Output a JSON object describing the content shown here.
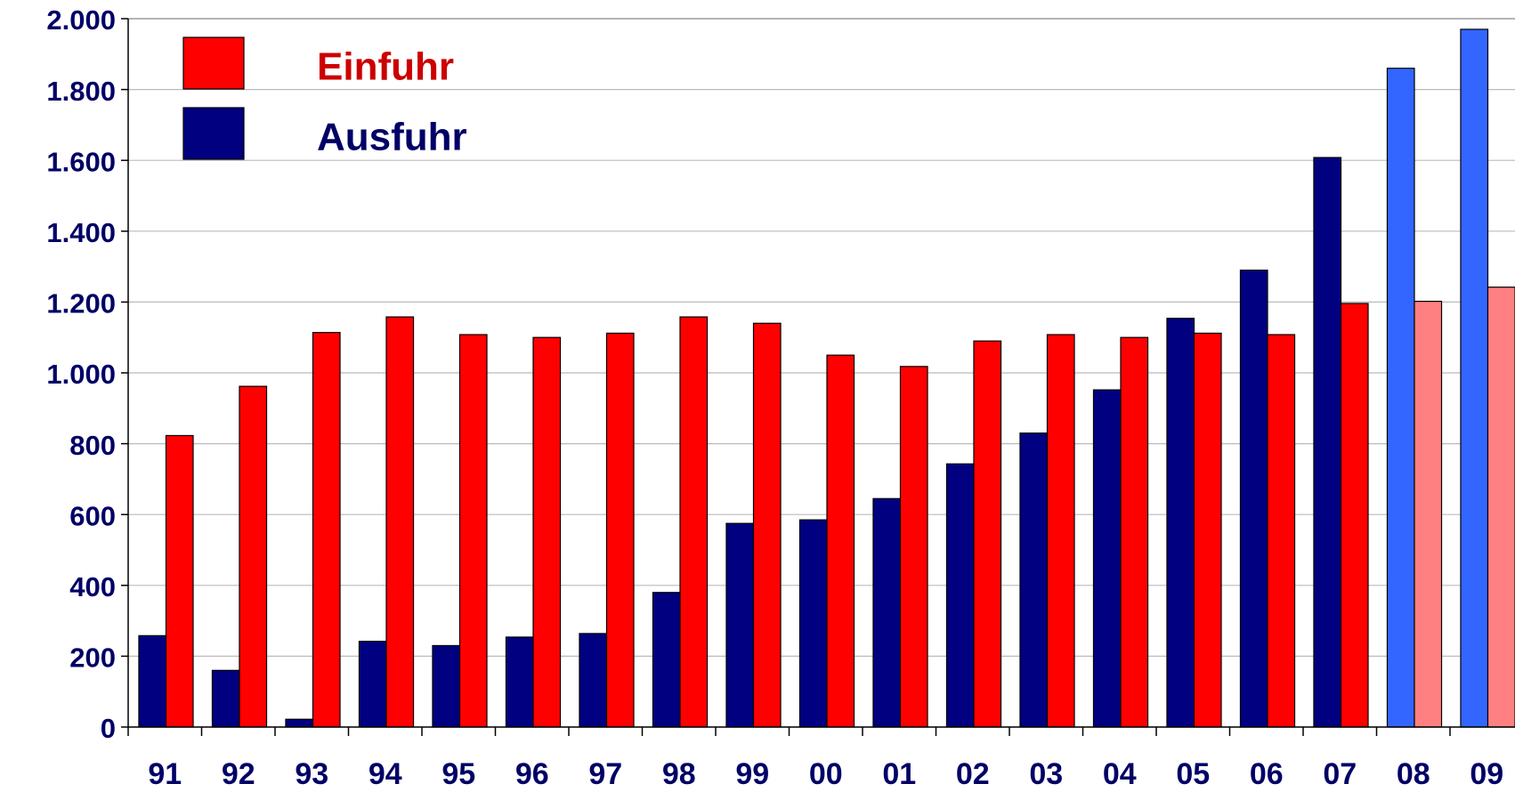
{
  "chart_data": {
    "type": "bar",
    "categories": [
      "91",
      "92",
      "93",
      "94",
      "95",
      "96",
      "97",
      "98",
      "99",
      "00",
      "01",
      "02",
      "03",
      "04",
      "05",
      "06",
      "07",
      "08",
      "09"
    ],
    "series": [
      {
        "name": "Ausfuhr",
        "color": "#000080",
        "point_colors": [
          "#000080",
          "#000080",
          "#000080",
          "#000080",
          "#000080",
          "#000080",
          "#000080",
          "#000080",
          "#000080",
          "#000080",
          "#000080",
          "#000080",
          "#000080",
          "#000080",
          "#000080",
          "#000080",
          "#000080",
          "#3366ff",
          "#3366ff"
        ],
        "values": [
          258,
          160,
          22,
          242,
          230,
          254,
          264,
          380,
          575,
          585,
          645,
          743,
          830,
          952,
          1154,
          1290,
          1608,
          1860,
          1970
        ]
      },
      {
        "name": "Einfuhr",
        "color": "#ff0000",
        "point_colors": [
          "#ff0000",
          "#ff0000",
          "#ff0000",
          "#ff0000",
          "#ff0000",
          "#ff0000",
          "#ff0000",
          "#ff0000",
          "#ff0000",
          "#ff0000",
          "#ff0000",
          "#ff0000",
          "#ff0000",
          "#ff0000",
          "#ff0000",
          "#ff0000",
          "#ff0000",
          "#ff8080",
          "#ff8080"
        ],
        "values": [
          823,
          962,
          1114,
          1158,
          1108,
          1100,
          1112,
          1158,
          1140,
          1050,
          1018,
          1090,
          1108,
          1100,
          1112,
          1108,
          1196,
          1202,
          1242
        ]
      }
    ],
    "ylim": [
      0,
      2000
    ],
    "yticks": [
      0,
      200,
      400,
      600,
      800,
      {
        "value": 1000,
        "label": "1.000"
      },
      {
        "value": 1200,
        "label": "1.200"
      },
      {
        "value": 1400,
        "label": "1.400"
      },
      {
        "value": 1600,
        "label": "1.600"
      },
      {
        "value": 1800,
        "label": "1.800"
      },
      {
        "value": 2000,
        "label": "2.000"
      }
    ],
    "grid": true,
    "legend": "upper left"
  }
}
